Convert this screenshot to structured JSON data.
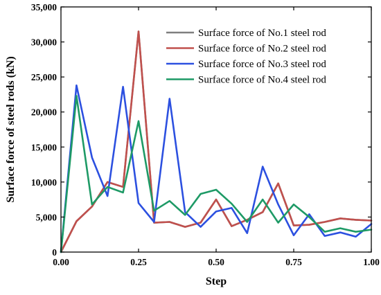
{
  "chart_data": {
    "type": "line",
    "xlabel": "Step",
    "ylabel": "Surface force of steel rods (kN)",
    "xlim": [
      0,
      1.0
    ],
    "ylim": [
      0,
      35000
    ],
    "x_ticks": [
      0,
      0.25,
      0.5,
      0.75,
      1.0
    ],
    "x_tick_labels": [
      "0.00",
      "0.25",
      "0.50",
      "0.75",
      "1.00"
    ],
    "y_ticks": [
      0,
      5000,
      10000,
      15000,
      20000,
      25000,
      30000,
      35000
    ],
    "y_tick_labels": [
      "0",
      "5,000",
      "10,000",
      "15,000",
      "20,000",
      "25,000",
      "30,000",
      "35,000"
    ],
    "grid": false,
    "legend_position": "top-right",
    "x": [
      0,
      0.05,
      0.1,
      0.15,
      0.2,
      0.25,
      0.3,
      0.35,
      0.4,
      0.45,
      0.5,
      0.55,
      0.6,
      0.65,
      0.7,
      0.75,
      0.8,
      0.85,
      0.9,
      0.95,
      1.0
    ],
    "series": [
      {
        "name": "Surface force of No.1 steel rod",
        "color": "#7f7f7f",
        "values": [
          0,
          4400,
          6500,
          10000,
          9300,
          31500,
          4200,
          4300,
          3600,
          4200,
          7500,
          3700,
          4600,
          5700,
          9800,
          3800,
          3900,
          4300,
          4800,
          4600,
          4500
        ]
      },
      {
        "name": "Surface force of No.2 steel rod",
        "color": "#c0504d",
        "values": [
          0,
          4400,
          6500,
          10000,
          9300,
          31500,
          4200,
          4300,
          3600,
          4200,
          7500,
          3700,
          4600,
          5700,
          9800,
          3800,
          3900,
          4300,
          4800,
          4600,
          4500
        ]
      },
      {
        "name": "Surface force of No.3 steel rod",
        "color": "#2c50e0",
        "values": [
          0,
          23800,
          13500,
          8000,
          23600,
          7000,
          4300,
          21900,
          5700,
          3600,
          5800,
          6300,
          2700,
          12200,
          6800,
          2400,
          5400,
          2300,
          2800,
          2200,
          4000
        ]
      },
      {
        "name": "Surface force of No.4 steel rod",
        "color": "#1e9a66",
        "values": [
          0,
          22300,
          6800,
          9300,
          8500,
          18700,
          5900,
          7300,
          5300,
          8300,
          8900,
          6900,
          4300,
          7500,
          4200,
          6800,
          5000,
          2900,
          3400,
          2900,
          3200
        ]
      }
    ]
  }
}
